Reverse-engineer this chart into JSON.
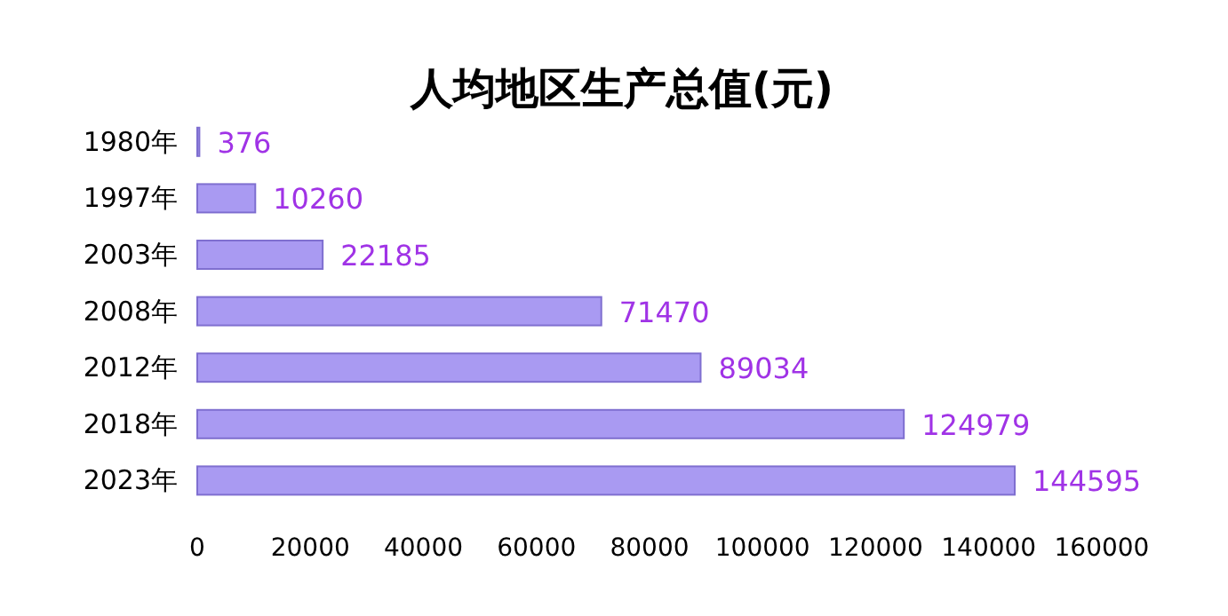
{
  "chart_data": {
    "type": "bar",
    "orientation": "horizontal",
    "title": "人均地区生产总值(元)",
    "categories": [
      "1980年",
      "1997年",
      "2003年",
      "2008年",
      "2012年",
      "2018年",
      "2023年"
    ],
    "values": [
      376,
      10260,
      22185,
      71470,
      89034,
      124979,
      144595
    ],
    "color": "#a99af2",
    "data_labels": true,
    "xlim": [
      0,
      160000
    ],
    "xticks": [
      0,
      20000,
      40000,
      60000,
      80000,
      100000,
      120000,
      140000,
      160000
    ]
  }
}
